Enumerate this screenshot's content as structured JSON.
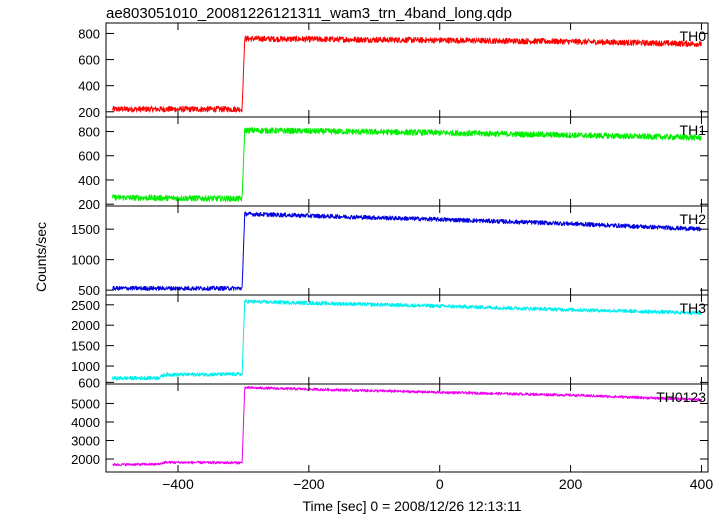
{
  "chart_data": {
    "type": "line",
    "title": "ae803051010_20081226121311_wam3_trn_4band_long.qdp",
    "xlabel": "Time [sec] 0 = 2008/12/26 12:13:11",
    "ylabel": "Counts/sec",
    "xlim": [
      -510,
      410
    ],
    "x_ticks": [
      -400,
      -200,
      0,
      200,
      400
    ],
    "x_tick_labels": [
      "−400",
      "−200",
      "0",
      "200",
      "400"
    ],
    "grid": false,
    "panels": [
      {
        "name": "TH0",
        "color": "#ff0000",
        "ylim": [
          160,
          880
        ],
        "y_ticks": [
          200,
          400,
          600,
          800
        ],
        "y_tick_labels": [
          "200",
          "400",
          "600",
          "800"
        ],
        "noise": 22,
        "levels": [
          {
            "x": -500,
            "y": 220
          },
          {
            "x": -302,
            "y": 220
          },
          {
            "x": -298,
            "y": 760
          },
          {
            "x": 0,
            "y": 748
          },
          {
            "x": 200,
            "y": 738
          },
          {
            "x": 400,
            "y": 720
          }
        ]
      },
      {
        "name": "TH1",
        "color": "#00ee00",
        "ylim": [
          185,
          920
        ],
        "y_ticks": [
          200,
          400,
          600,
          800
        ],
        "y_tick_labels": [
          "200",
          "400",
          "600",
          "800"
        ],
        "noise": 24,
        "levels": [
          {
            "x": -500,
            "y": 255
          },
          {
            "x": -302,
            "y": 245
          },
          {
            "x": -298,
            "y": 810
          },
          {
            "x": 0,
            "y": 790
          },
          {
            "x": 200,
            "y": 770
          },
          {
            "x": 400,
            "y": 750
          }
        ]
      },
      {
        "name": "TH2",
        "color": "#0000dd",
        "ylim": [
          420,
          1880
        ],
        "y_ticks": [
          500,
          1000,
          1500
        ],
        "y_tick_labels": [
          "500",
          "1000",
          "1500"
        ],
        "noise": 35,
        "levels": [
          {
            "x": -500,
            "y": 530
          },
          {
            "x": -302,
            "y": 530
          },
          {
            "x": -298,
            "y": 1750
          },
          {
            "x": 0,
            "y": 1660
          },
          {
            "x": 200,
            "y": 1590
          },
          {
            "x": 400,
            "y": 1500
          }
        ]
      },
      {
        "name": "TH3",
        "color": "#00eeee",
        "ylim": [
          560,
          2740
        ],
        "y_ticks": [
          600,
          1000,
          1500,
          2000,
          2500
        ],
        "y_tick_labels": [
          "600",
          "1000",
          "1500",
          "2000",
          "2500"
        ],
        "noise": 45,
        "levels": [
          {
            "x": -500,
            "y": 700
          },
          {
            "x": -430,
            "y": 710
          },
          {
            "x": -420,
            "y": 790
          },
          {
            "x": -302,
            "y": 800
          },
          {
            "x": -298,
            "y": 2580
          },
          {
            "x": 0,
            "y": 2470
          },
          {
            "x": 200,
            "y": 2380
          },
          {
            "x": 400,
            "y": 2300
          }
        ]
      },
      {
        "name": "TH0123",
        "color": "#ee00ee",
        "ylim": [
          1300,
          6050
        ],
        "y_ticks": [
          2000,
          3000,
          4000,
          5000
        ],
        "y_tick_labels": [
          "2000",
          "3000",
          "4000",
          "5000"
        ],
        "noise": 70,
        "levels": [
          {
            "x": -500,
            "y": 1700
          },
          {
            "x": -430,
            "y": 1720
          },
          {
            "x": -420,
            "y": 1820
          },
          {
            "x": -302,
            "y": 1800
          },
          {
            "x": -298,
            "y": 5850
          },
          {
            "x": 0,
            "y": 5600
          },
          {
            "x": 200,
            "y": 5450
          },
          {
            "x": 400,
            "y": 5200
          }
        ]
      }
    ]
  }
}
